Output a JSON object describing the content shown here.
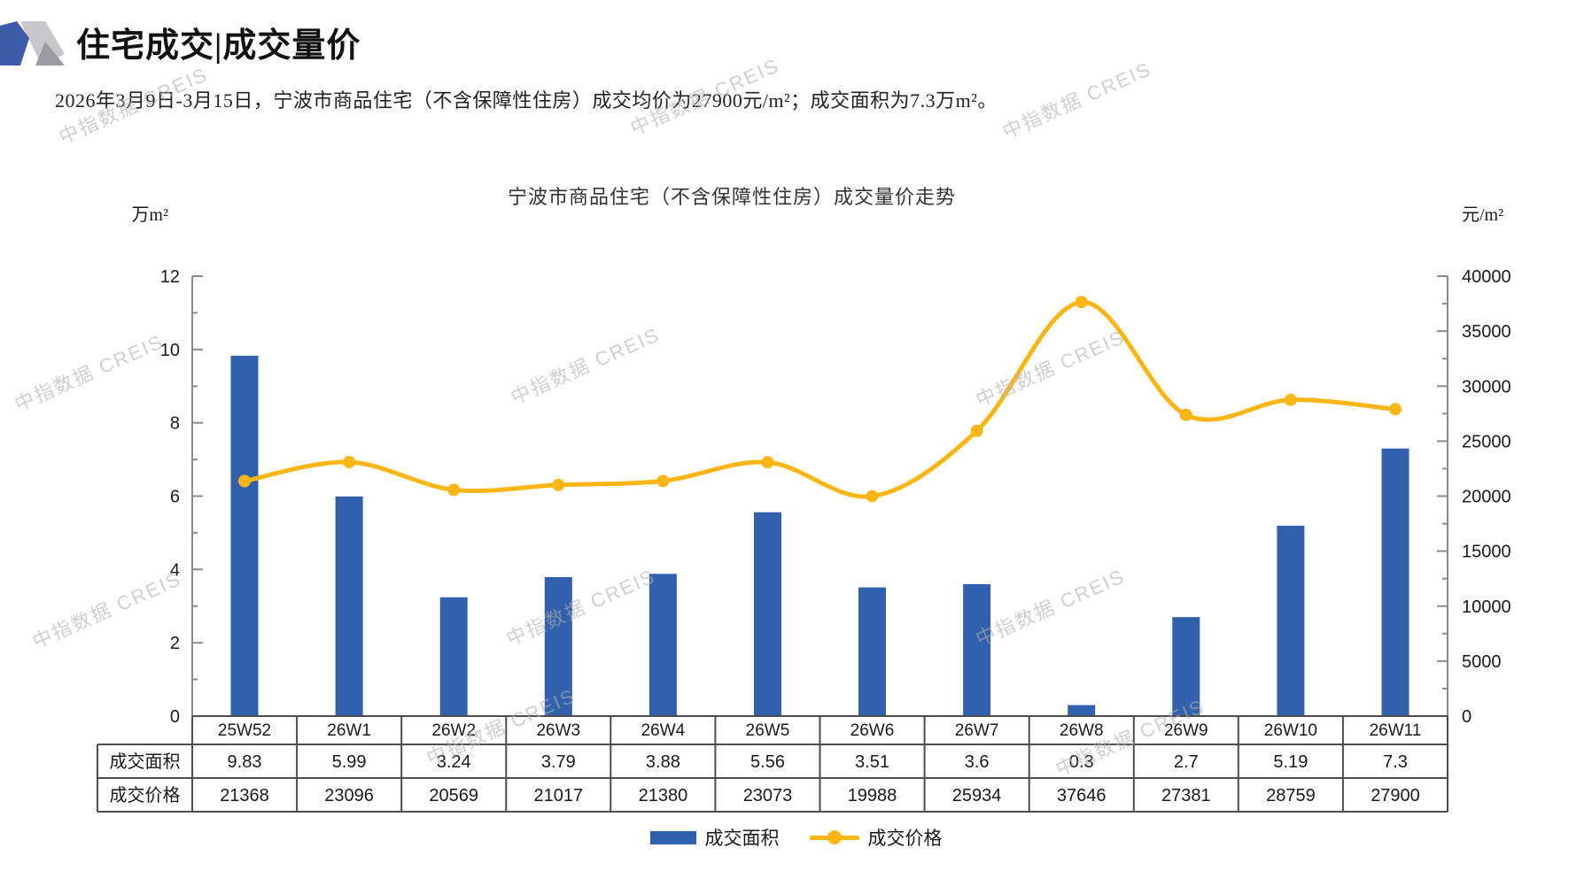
{
  "page": {
    "title": "住宅成交|成交量价",
    "subtitle": "2026年3月9日-3月15日，宁波市商品住宅（不含保障性住房）成交均价为27900元/m²；成交面积为7.3万m²。",
    "watermark": "中指数据 CREIS"
  },
  "chart_data": {
    "type": "bar+line",
    "title": "宁波市商品住宅（不含保障性住房）成交量价走势",
    "categories": [
      "25W52",
      "26W1",
      "26W2",
      "26W3",
      "26W4",
      "26W5",
      "26W6",
      "26W7",
      "26W8",
      "26W9",
      "26W10",
      "26W11"
    ],
    "series": [
      {
        "name": "成交面积",
        "type": "bar",
        "axis": "left",
        "color": "#3161AC",
        "values": [
          9.83,
          5.99,
          3.24,
          3.79,
          3.88,
          5.56,
          3.51,
          3.6,
          0.3,
          2.7,
          5.19,
          7.3
        ]
      },
      {
        "name": "成交价格",
        "type": "line",
        "axis": "right",
        "color": "#FBB616",
        "values": [
          21368,
          23096,
          20569,
          21017,
          21380,
          23073,
          19988,
          25934,
          37646,
          27381,
          28759,
          27900
        ]
      }
    ],
    "left_axis": {
      "unit": "万m²",
      "min": 0,
      "max": 12,
      "step": 2,
      "minor_step": 1
    },
    "right_axis": {
      "unit": "元/m²",
      "min": 0,
      "max": 40000,
      "step": 5000,
      "minor_step": 2500
    },
    "table_row_headers": [
      "成交面积",
      "成交价格"
    ],
    "legend_position": "bottom",
    "grid": false,
    "axis_color": "#8C8C8C",
    "table_border_color": "#4D4D4D",
    "text_color": "#1A1A1A"
  }
}
